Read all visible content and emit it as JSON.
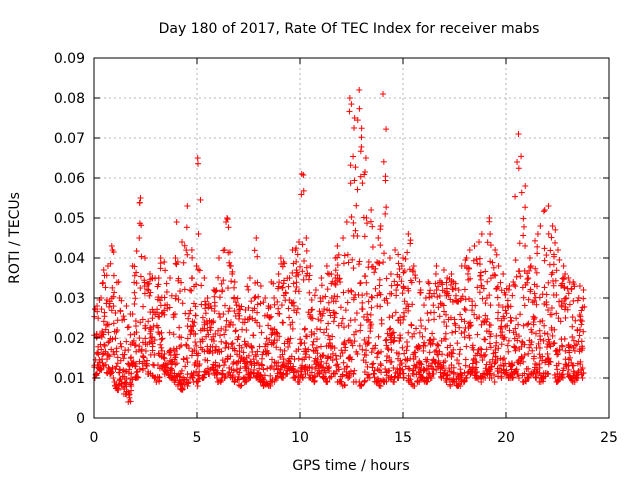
{
  "chart_data": {
    "type": "scatter",
    "title": "Day 180 of 2017, Rate Of TEC Index for receiver mabs",
    "xlabel": "GPS time / hours",
    "ylabel": "ROTI / TECUs",
    "xlim": [
      0,
      25
    ],
    "ylim": [
      0,
      0.09
    ],
    "xticks": [
      0,
      5,
      10,
      15,
      20,
      25
    ],
    "yticks": [
      0,
      0.01,
      0.02,
      0.03,
      0.04,
      0.05,
      0.06,
      0.07,
      0.08,
      0.09
    ],
    "xtick_labels": [
      "0",
      "5",
      "10",
      "15",
      "20",
      "25"
    ],
    "ytick_labels": [
      "0",
      "0.01",
      "0.02",
      "0.03",
      "0.04",
      "0.05",
      "0.06",
      "0.07",
      "0.08",
      "0.09"
    ],
    "grid": true,
    "legend": "none",
    "marker": "+",
    "marker_color": "#ff0000",
    "series": [
      {
        "x": [
          0.1,
          0.3,
          0.5,
          0.7,
          0.9,
          1.1,
          1.3,
          1.5,
          1.7,
          1.9,
          2.1,
          2.3,
          2.5,
          2.7,
          2.9,
          3.1,
          3.3,
          3.5,
          3.7,
          3.9,
          4.1,
          4.3,
          4.5,
          4.7,
          4.9,
          5.1,
          5.3,
          5.5,
          5.7,
          5.9,
          6.1,
          6.3,
          6.5,
          6.7,
          6.9,
          7.1,
          7.3,
          7.5,
          7.7,
          7.9,
          8.1,
          8.3,
          8.5,
          8.7,
          8.9,
          9.1,
          9.3,
          9.5,
          9.7,
          9.9,
          10.1,
          10.3,
          10.5,
          10.7,
          10.9,
          11.1,
          11.3,
          11.5,
          11.7,
          11.9,
          12.1,
          12.3,
          12.5,
          12.7,
          12.9,
          13.1,
          13.3,
          13.5,
          13.7,
          13.9,
          14.1,
          14.3,
          14.5,
          14.7,
          14.9,
          15.1,
          15.3,
          15.5,
          15.7,
          15.9,
          16.1,
          16.3,
          16.5,
          16.7,
          16.9,
          17.1,
          17.3,
          17.5,
          17.7,
          17.9,
          18.1,
          18.3,
          18.5,
          18.7,
          18.9,
          19.1,
          19.3,
          19.5,
          19.7,
          19.9,
          20.1,
          20.3,
          20.5,
          20.7,
          20.9,
          21.1,
          21.3,
          21.5,
          21.7,
          21.9,
          22.1,
          22.3,
          22.5,
          22.7,
          22.9,
          23.1,
          23.3,
          23.5,
          23.7
        ],
        "y_low": [
          0.01,
          0.012,
          0.013,
          0.011,
          0.009,
          0.007,
          0.008,
          0.006,
          0.004,
          0.008,
          0.01,
          0.012,
          0.013,
          0.011,
          0.01,
          0.009,
          0.012,
          0.011,
          0.01,
          0.009,
          0.008,
          0.007,
          0.008,
          0.01,
          0.009,
          0.008,
          0.01,
          0.011,
          0.012,
          0.01,
          0.009,
          0.01,
          0.011,
          0.01,
          0.009,
          0.008,
          0.009,
          0.01,
          0.011,
          0.01,
          0.009,
          0.008,
          0.008,
          0.009,
          0.01,
          0.01,
          0.011,
          0.012,
          0.01,
          0.009,
          0.01,
          0.011,
          0.01,
          0.009,
          0.011,
          0.01,
          0.009,
          0.01,
          0.011,
          0.009,
          0.008,
          0.01,
          0.011,
          0.009,
          0.008,
          0.009,
          0.01,
          0.011,
          0.009,
          0.008,
          0.009,
          0.01,
          0.009,
          0.01,
          0.011,
          0.01,
          0.009,
          0.008,
          0.009,
          0.01,
          0.009,
          0.01,
          0.011,
          0.012,
          0.01,
          0.009,
          0.008,
          0.009,
          0.008,
          0.009,
          0.01,
          0.011,
          0.01,
          0.009,
          0.01,
          0.011,
          0.01,
          0.009,
          0.01,
          0.011,
          0.01,
          0.01,
          0.011,
          0.01,
          0.009,
          0.01,
          0.011,
          0.01,
          0.009,
          0.01,
          0.011,
          0.01,
          0.009,
          0.01,
          0.011,
          0.01,
          0.009,
          0.01,
          0.01
        ],
        "y_high": [
          0.028,
          0.03,
          0.037,
          0.038,
          0.043,
          0.034,
          0.03,
          0.028,
          0.026,
          0.038,
          0.045,
          0.055,
          0.04,
          0.036,
          0.035,
          0.035,
          0.04,
          0.039,
          0.035,
          0.04,
          0.049,
          0.044,
          0.053,
          0.042,
          0.038,
          0.065,
          0.035,
          0.03,
          0.028,
          0.032,
          0.04,
          0.042,
          0.05,
          0.038,
          0.034,
          0.028,
          0.027,
          0.035,
          0.03,
          0.045,
          0.033,
          0.03,
          0.028,
          0.034,
          0.036,
          0.04,
          0.039,
          0.035,
          0.042,
          0.044,
          0.061,
          0.045,
          0.038,
          0.032,
          0.03,
          0.035,
          0.038,
          0.036,
          0.04,
          0.043,
          0.045,
          0.049,
          0.08,
          0.075,
          0.082,
          0.065,
          0.05,
          0.052,
          0.045,
          0.048,
          0.081,
          0.04,
          0.036,
          0.042,
          0.038,
          0.04,
          0.046,
          0.038,
          0.035,
          0.032,
          0.03,
          0.034,
          0.036,
          0.038,
          0.037,
          0.035,
          0.036,
          0.034,
          0.032,
          0.038,
          0.04,
          0.042,
          0.043,
          0.044,
          0.046,
          0.05,
          0.046,
          0.042,
          0.038,
          0.036,
          0.033,
          0.034,
          0.064,
          0.071,
          0.058,
          0.04,
          0.038,
          0.046,
          0.048,
          0.052,
          0.053,
          0.048,
          0.042,
          0.038,
          0.036,
          0.035,
          0.034,
          0.033,
          0.032
        ]
      }
    ]
  }
}
